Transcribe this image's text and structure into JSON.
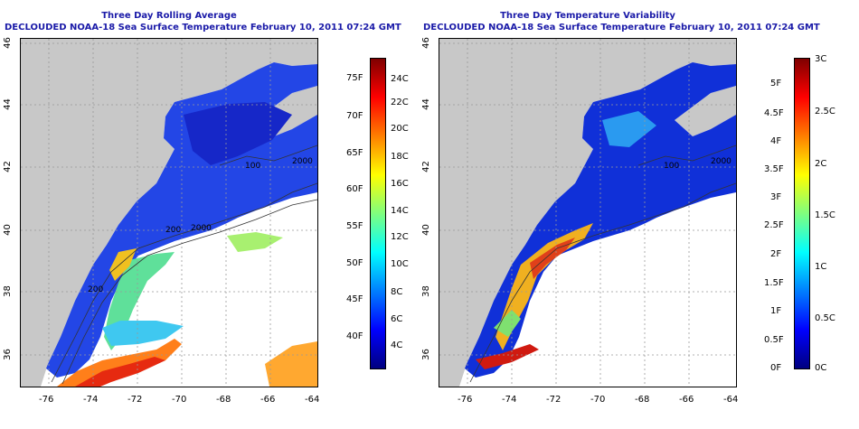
{
  "left": {
    "title_line1": "Three Day Rolling Average",
    "title_line2": "DECLOUDED NOAA-18 Sea Surface Temperature February 10, 2011 07:24 GMT",
    "x_ticks": [
      "-76",
      "-74",
      "-72",
      "-70",
      "-68",
      "-66",
      "-64"
    ],
    "y_ticks": [
      "46",
      "44",
      "42",
      "40",
      "38",
      "36"
    ],
    "contour_labels": [
      "100",
      "2000",
      "200",
      "2000",
      "200"
    ],
    "colorbar": {
      "stops": [
        "#00007f",
        "#0000ff",
        "#007fff",
        "#00ffff",
        "#7fff7f",
        "#ffff00",
        "#ff7f00",
        "#ff0000",
        "#7f0000"
      ],
      "fahrenheit": [
        "75F",
        "70F",
        "65F",
        "60F",
        "55F",
        "50F",
        "45F",
        "40F"
      ],
      "celsius": [
        "24C",
        "22C",
        "20C",
        "18C",
        "16C",
        "14C",
        "12C",
        "10C",
        "8C",
        "6C",
        "4C"
      ]
    }
  },
  "right": {
    "title_line1": "Three Day Temperature Variability",
    "title_line2": "DECLOUDED NOAA-18 Sea Surface Temperature February 10, 2011 07:24 GMT",
    "x_ticks": [
      "-76",
      "-74",
      "-72",
      "-70",
      "-68",
      "-66",
      "-64"
    ],
    "y_ticks": [
      "46",
      "44",
      "42",
      "40",
      "38",
      "36"
    ],
    "contour_labels": [
      "100",
      "2000"
    ],
    "colorbar": {
      "stops": [
        "#00007f",
        "#0000ff",
        "#007fff",
        "#00ffff",
        "#7fff7f",
        "#ffff00",
        "#ff7f00",
        "#ff0000",
        "#7f0000"
      ],
      "fahrenheit": [
        "5F",
        "4.5F",
        "4F",
        "3.5F",
        "3F",
        "2.5F",
        "2F",
        "1.5F",
        "1F",
        "0.5F",
        "0F"
      ],
      "celsius": [
        "3C",
        "2.5C",
        "2C",
        "1.5C",
        "1C",
        "0.5C",
        "0C"
      ]
    }
  }
}
